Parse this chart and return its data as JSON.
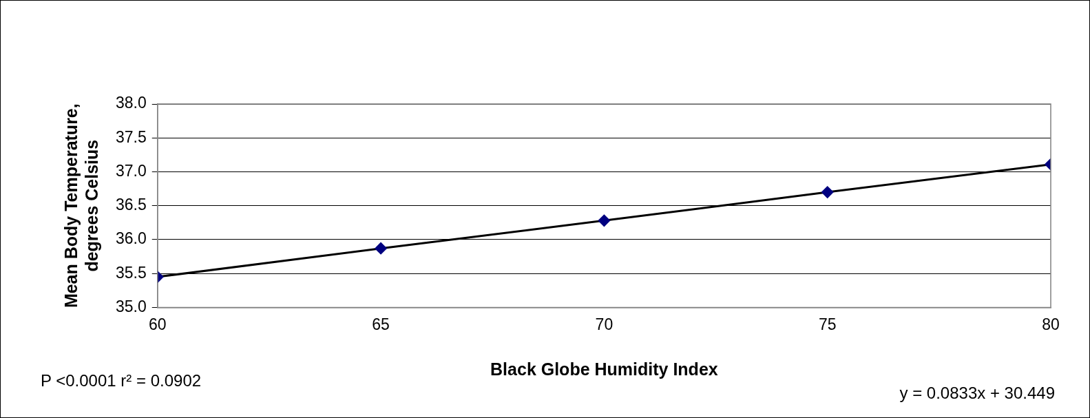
{
  "chart_data": {
    "type": "line",
    "xlabel": "Black Globe Humidity Index",
    "ylabel": "Mean Body Temperature, degrees Celsius",
    "x": [
      60,
      65,
      70,
      75,
      80
    ],
    "series": [
      {
        "color": "#000080",
        "values": [
          35.45,
          35.87,
          36.28,
          36.7,
          37.11
        ]
      }
    ],
    "xlim": [
      60,
      80
    ],
    "xticks": [
      60,
      65,
      70,
      75,
      80
    ],
    "ylim": [
      35,
      38
    ],
    "yticks": [
      {
        "value": 35,
        "label": "35.0"
      },
      {
        "value": 35.5,
        "label": "35.5"
      },
      {
        "value": 36,
        "label": "36.0"
      },
      {
        "value": 36.5,
        "label": "36.5"
      },
      {
        "value": 37,
        "label": "37.0"
      },
      {
        "value": 37.5,
        "label": "37.5"
      },
      {
        "value": 38,
        "label": "38.0"
      }
    ],
    "grid": "y",
    "legend": false,
    "marker": "diamond",
    "line_style": "solid",
    "annotations": [
      "P <0.0001  r² = 0.0902",
      "y = 0.0833x + 30.449"
    ]
  }
}
